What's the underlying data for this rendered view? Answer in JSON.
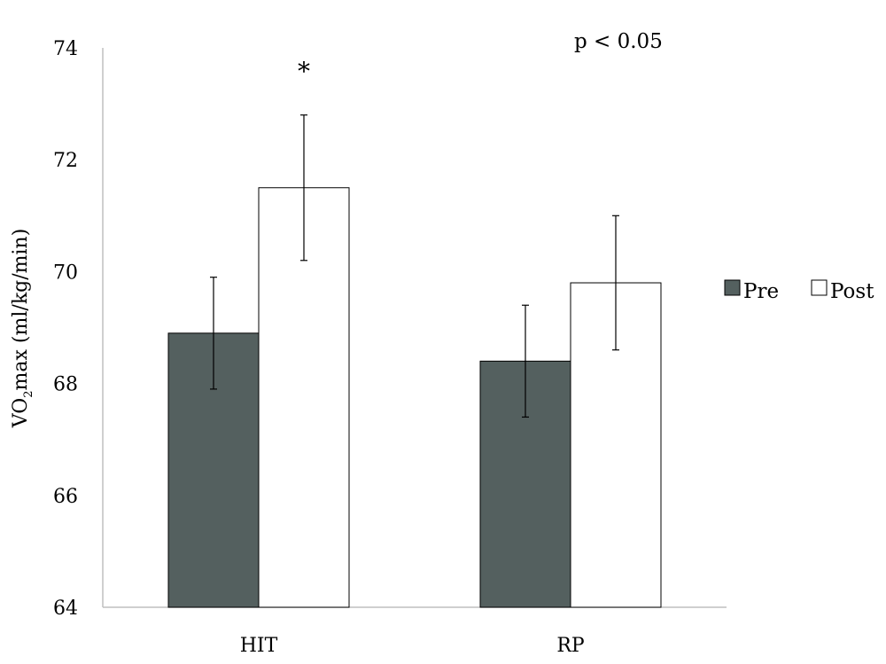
{
  "chart_data": {
    "type": "bar",
    "categories": [
      "HIT",
      "RP"
    ],
    "series": [
      {
        "name": "Pre",
        "values": [
          68.9,
          68.4
        ],
        "errors": [
          1.0,
          1.0
        ],
        "color": "#54605f"
      },
      {
        "name": "Post",
        "values": [
          71.5,
          69.8
        ],
        "errors": [
          1.3,
          1.2
        ],
        "color": "#ffffff"
      }
    ],
    "ylim": [
      64,
      74
    ],
    "yticks": [
      "64",
      "66",
      "68",
      "70",
      "72",
      "74"
    ],
    "ylabel_parts": {
      "before": "VO",
      "sub": "2",
      "after": "max (ml/kg/min)"
    },
    "xlabel": "",
    "legend": {
      "placement": "right",
      "items": [
        {
          "label": "Pre",
          "color": "#54605f"
        },
        {
          "label": "Post",
          "color": "#ffffff"
        }
      ]
    },
    "annotations": {
      "significance": "p < 0.05",
      "star": "*"
    },
    "grid": false,
    "axis_color": "#bfbfbf",
    "bar_stroke": "#000000"
  }
}
